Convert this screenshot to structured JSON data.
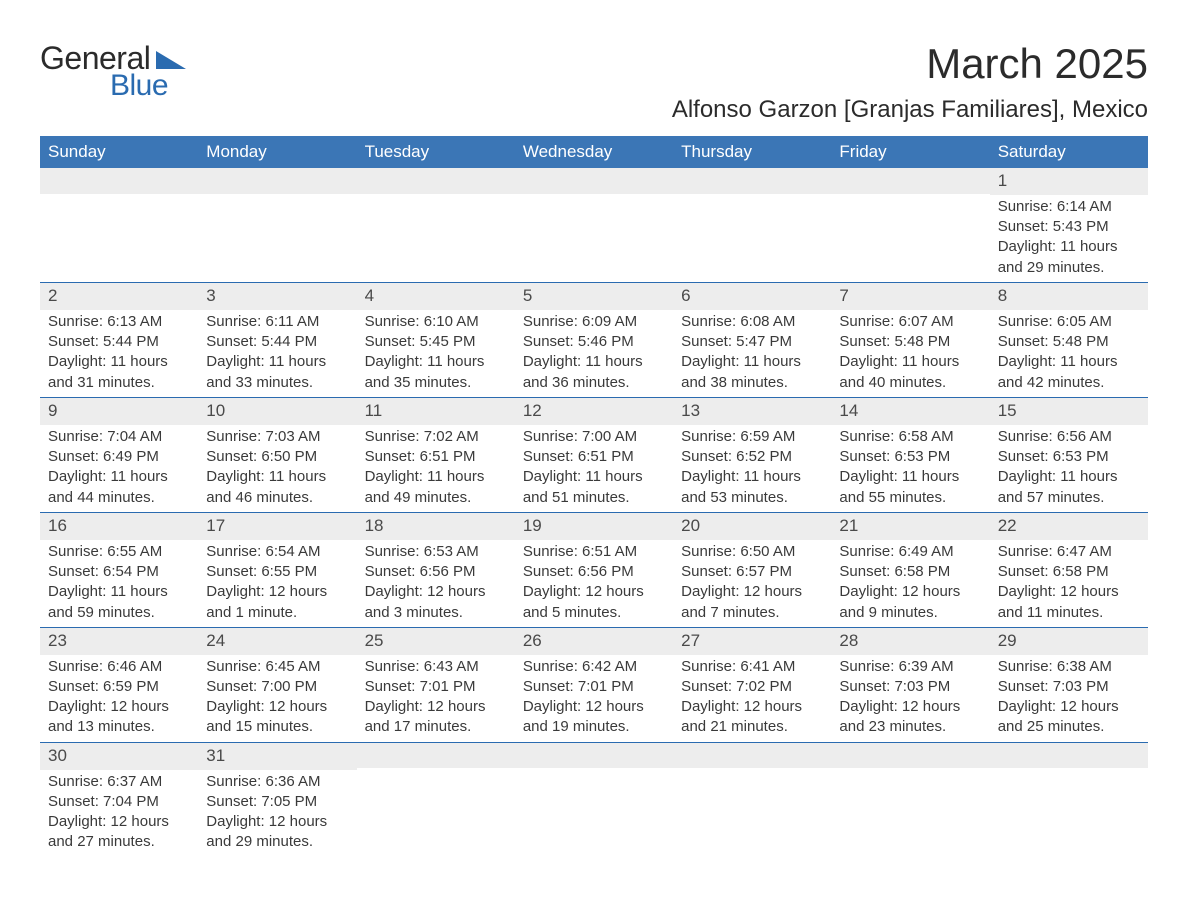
{
  "logo": {
    "word1": "General",
    "word2": "Blue",
    "triangle_color": "#2a6bb0"
  },
  "title": "March 2025",
  "location": "Alfonso Garzon [Granjas Familiares], Mexico",
  "colors": {
    "header_bg": "#3b76b6",
    "header_text": "#ffffff",
    "daybar_bg": "#ededed",
    "daybar_border": "#2a6bb0",
    "body_text": "#3a3a3a"
  },
  "weekdays": [
    "Sunday",
    "Monday",
    "Tuesday",
    "Wednesday",
    "Thursday",
    "Friday",
    "Saturday"
  ],
  "weeks": [
    [
      {
        "day": null
      },
      {
        "day": null
      },
      {
        "day": null
      },
      {
        "day": null
      },
      {
        "day": null
      },
      {
        "day": null
      },
      {
        "day": "1",
        "sunrise": "Sunrise: 6:14 AM",
        "sunset": "Sunset: 5:43 PM",
        "daylight": "Daylight: 11 hours and 29 minutes."
      }
    ],
    [
      {
        "day": "2",
        "sunrise": "Sunrise: 6:13 AM",
        "sunset": "Sunset: 5:44 PM",
        "daylight": "Daylight: 11 hours and 31 minutes."
      },
      {
        "day": "3",
        "sunrise": "Sunrise: 6:11 AM",
        "sunset": "Sunset: 5:44 PM",
        "daylight": "Daylight: 11 hours and 33 minutes."
      },
      {
        "day": "4",
        "sunrise": "Sunrise: 6:10 AM",
        "sunset": "Sunset: 5:45 PM",
        "daylight": "Daylight: 11 hours and 35 minutes."
      },
      {
        "day": "5",
        "sunrise": "Sunrise: 6:09 AM",
        "sunset": "Sunset: 5:46 PM",
        "daylight": "Daylight: 11 hours and 36 minutes."
      },
      {
        "day": "6",
        "sunrise": "Sunrise: 6:08 AM",
        "sunset": "Sunset: 5:47 PM",
        "daylight": "Daylight: 11 hours and 38 minutes."
      },
      {
        "day": "7",
        "sunrise": "Sunrise: 6:07 AM",
        "sunset": "Sunset: 5:48 PM",
        "daylight": "Daylight: 11 hours and 40 minutes."
      },
      {
        "day": "8",
        "sunrise": "Sunrise: 6:05 AM",
        "sunset": "Sunset: 5:48 PM",
        "daylight": "Daylight: 11 hours and 42 minutes."
      }
    ],
    [
      {
        "day": "9",
        "sunrise": "Sunrise: 7:04 AM",
        "sunset": "Sunset: 6:49 PM",
        "daylight": "Daylight: 11 hours and 44 minutes."
      },
      {
        "day": "10",
        "sunrise": "Sunrise: 7:03 AM",
        "sunset": "Sunset: 6:50 PM",
        "daylight": "Daylight: 11 hours and 46 minutes."
      },
      {
        "day": "11",
        "sunrise": "Sunrise: 7:02 AM",
        "sunset": "Sunset: 6:51 PM",
        "daylight": "Daylight: 11 hours and 49 minutes."
      },
      {
        "day": "12",
        "sunrise": "Sunrise: 7:00 AM",
        "sunset": "Sunset: 6:51 PM",
        "daylight": "Daylight: 11 hours and 51 minutes."
      },
      {
        "day": "13",
        "sunrise": "Sunrise: 6:59 AM",
        "sunset": "Sunset: 6:52 PM",
        "daylight": "Daylight: 11 hours and 53 minutes."
      },
      {
        "day": "14",
        "sunrise": "Sunrise: 6:58 AM",
        "sunset": "Sunset: 6:53 PM",
        "daylight": "Daylight: 11 hours and 55 minutes."
      },
      {
        "day": "15",
        "sunrise": "Sunrise: 6:56 AM",
        "sunset": "Sunset: 6:53 PM",
        "daylight": "Daylight: 11 hours and 57 minutes."
      }
    ],
    [
      {
        "day": "16",
        "sunrise": "Sunrise: 6:55 AM",
        "sunset": "Sunset: 6:54 PM",
        "daylight": "Daylight: 11 hours and 59 minutes."
      },
      {
        "day": "17",
        "sunrise": "Sunrise: 6:54 AM",
        "sunset": "Sunset: 6:55 PM",
        "daylight": "Daylight: 12 hours and 1 minute."
      },
      {
        "day": "18",
        "sunrise": "Sunrise: 6:53 AM",
        "sunset": "Sunset: 6:56 PM",
        "daylight": "Daylight: 12 hours and 3 minutes."
      },
      {
        "day": "19",
        "sunrise": "Sunrise: 6:51 AM",
        "sunset": "Sunset: 6:56 PM",
        "daylight": "Daylight: 12 hours and 5 minutes."
      },
      {
        "day": "20",
        "sunrise": "Sunrise: 6:50 AM",
        "sunset": "Sunset: 6:57 PM",
        "daylight": "Daylight: 12 hours and 7 minutes."
      },
      {
        "day": "21",
        "sunrise": "Sunrise: 6:49 AM",
        "sunset": "Sunset: 6:58 PM",
        "daylight": "Daylight: 12 hours and 9 minutes."
      },
      {
        "day": "22",
        "sunrise": "Sunrise: 6:47 AM",
        "sunset": "Sunset: 6:58 PM",
        "daylight": "Daylight: 12 hours and 11 minutes."
      }
    ],
    [
      {
        "day": "23",
        "sunrise": "Sunrise: 6:46 AM",
        "sunset": "Sunset: 6:59 PM",
        "daylight": "Daylight: 12 hours and 13 minutes."
      },
      {
        "day": "24",
        "sunrise": "Sunrise: 6:45 AM",
        "sunset": "Sunset: 7:00 PM",
        "daylight": "Daylight: 12 hours and 15 minutes."
      },
      {
        "day": "25",
        "sunrise": "Sunrise: 6:43 AM",
        "sunset": "Sunset: 7:01 PM",
        "daylight": "Daylight: 12 hours and 17 minutes."
      },
      {
        "day": "26",
        "sunrise": "Sunrise: 6:42 AM",
        "sunset": "Sunset: 7:01 PM",
        "daylight": "Daylight: 12 hours and 19 minutes."
      },
      {
        "day": "27",
        "sunrise": "Sunrise: 6:41 AM",
        "sunset": "Sunset: 7:02 PM",
        "daylight": "Daylight: 12 hours and 21 minutes."
      },
      {
        "day": "28",
        "sunrise": "Sunrise: 6:39 AM",
        "sunset": "Sunset: 7:03 PM",
        "daylight": "Daylight: 12 hours and 23 minutes."
      },
      {
        "day": "29",
        "sunrise": "Sunrise: 6:38 AM",
        "sunset": "Sunset: 7:03 PM",
        "daylight": "Daylight: 12 hours and 25 minutes."
      }
    ],
    [
      {
        "day": "30",
        "sunrise": "Sunrise: 6:37 AM",
        "sunset": "Sunset: 7:04 PM",
        "daylight": "Daylight: 12 hours and 27 minutes."
      },
      {
        "day": "31",
        "sunrise": "Sunrise: 6:36 AM",
        "sunset": "Sunset: 7:05 PM",
        "daylight": "Daylight: 12 hours and 29 minutes."
      },
      {
        "day": null
      },
      {
        "day": null
      },
      {
        "day": null
      },
      {
        "day": null
      },
      {
        "day": null
      }
    ]
  ]
}
